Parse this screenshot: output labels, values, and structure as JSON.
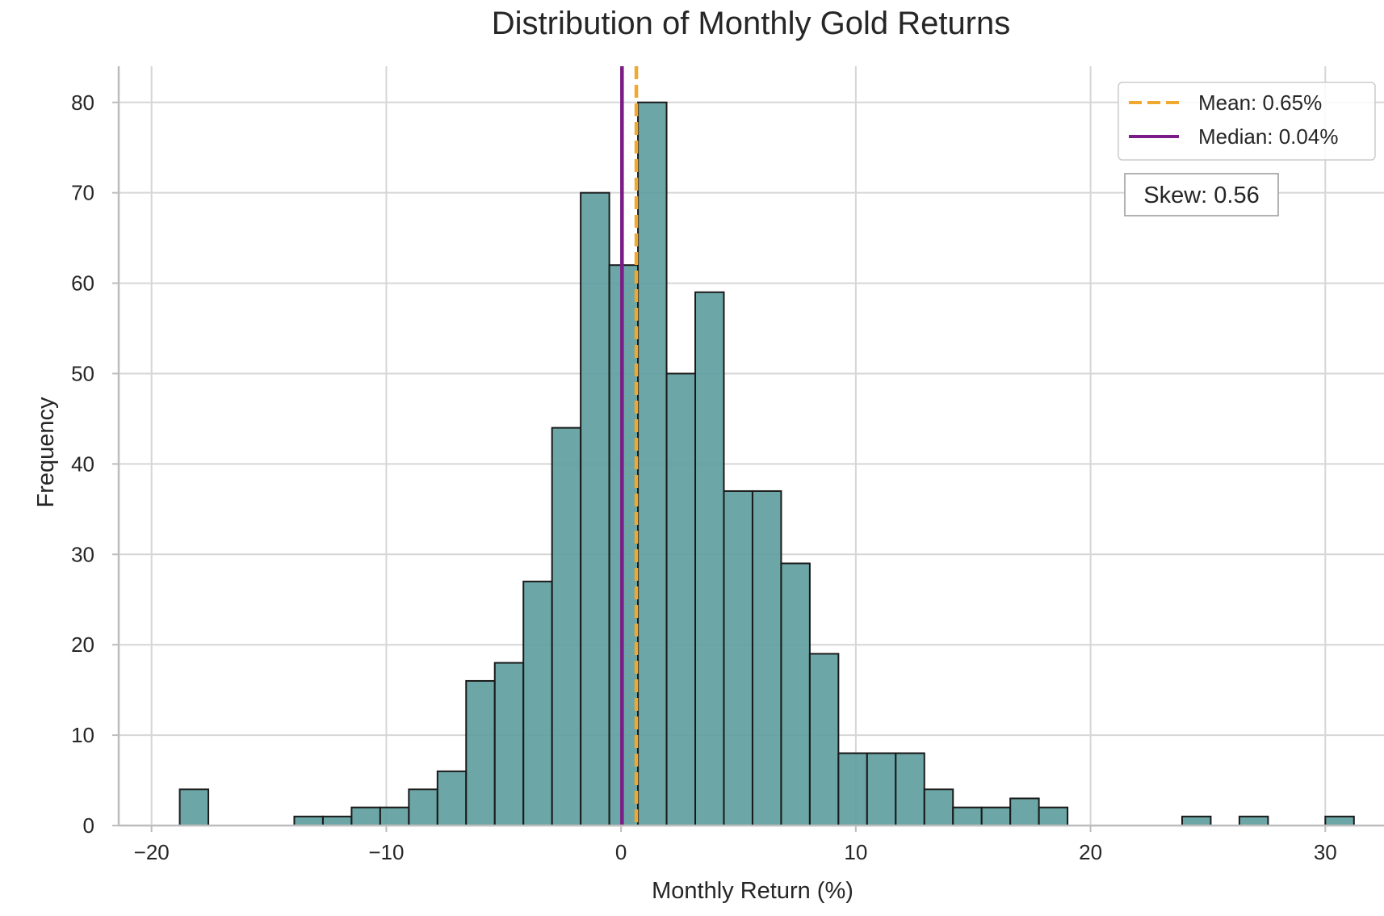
{
  "chart_data": {
    "type": "bar",
    "title": "Distribution of Monthly Gold Returns",
    "xlabel": "Monthly Return (%)",
    "ylabel": "Frequency",
    "xlim": [
      -21.4,
      32.5
    ],
    "ylim": [
      0,
      84
    ],
    "xticks": [
      -20,
      -10,
      0,
      10,
      20,
      30
    ],
    "xtick_labels": [
      "−20",
      "−10",
      "0",
      "10",
      "20",
      "30"
    ],
    "yticks": [
      0,
      10,
      20,
      30,
      40,
      50,
      60,
      70,
      80
    ],
    "ytick_labels": [
      "0",
      "10",
      "20",
      "30",
      "40",
      "50",
      "60",
      "70",
      "80"
    ],
    "grid": true,
    "bins": {
      "start": -18.8,
      "width": 1.22,
      "counts": [
        4,
        0,
        0,
        0,
        1,
        1,
        2,
        2,
        4,
        6,
        16,
        18,
        27,
        44,
        70,
        62,
        80,
        50,
        59,
        37,
        37,
        29,
        19,
        8,
        8,
        8,
        4,
        2,
        2,
        3,
        2,
        0,
        0,
        0,
        0,
        1,
        0,
        1,
        0,
        0,
        1
      ]
    },
    "bar_color": "#5f9ea0",
    "mean": {
      "value": 0.65,
      "label": "Mean: 0.65%",
      "color": "#f0a830"
    },
    "median": {
      "value": 0.04,
      "label": "Median: 0.04%",
      "color": "#7b1d86"
    },
    "legend_position": "top-right",
    "annotation": {
      "text": "Skew: 0.56"
    }
  }
}
